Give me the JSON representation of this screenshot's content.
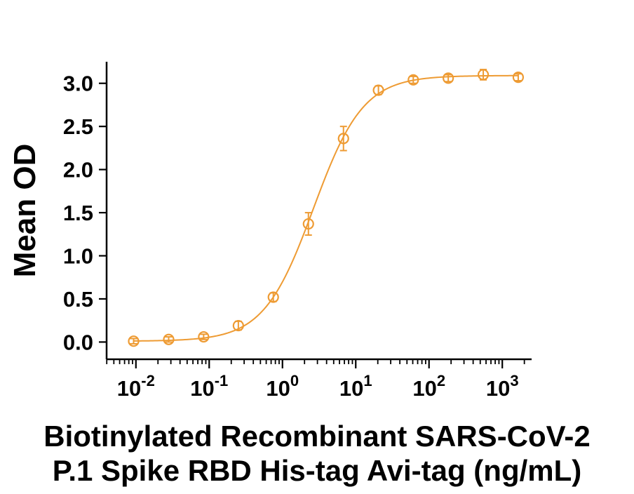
{
  "chart_data": {
    "type": "scatter",
    "title_line1": "Biotinylated Recombinant SARS-CoV-2",
    "title_line2": "P.1 Spike RBD His-tag Avi-tag (ng/mL)",
    "ylabel": "Mean OD",
    "x_scale": "log10",
    "xlim_log": [
      -2.4,
      3.4
    ],
    "ylim": [
      -0.2,
      3.25
    ],
    "x_tick_base": "10",
    "x_major_tick_exponents": [
      -2,
      -1,
      0,
      1,
      2,
      3
    ],
    "y_ticks": [
      0.0,
      0.5,
      1.0,
      1.5,
      2.0,
      2.5,
      3.0
    ],
    "grid": false,
    "legend": "none",
    "series": [
      {
        "color": "#EE9B33",
        "marker": "open-circle",
        "points": [
          {
            "x": 0.0093,
            "y": 0.01,
            "err": 0.03
          },
          {
            "x": 0.028,
            "y": 0.03,
            "err": 0.03
          },
          {
            "x": 0.084,
            "y": 0.06,
            "err": 0.03
          },
          {
            "x": 0.25,
            "y": 0.19,
            "err": 0.05
          },
          {
            "x": 0.75,
            "y": 0.52,
            "err": 0.05
          },
          {
            "x": 2.26,
            "y": 1.37,
            "err": 0.13
          },
          {
            "x": 6.8,
            "y": 2.36,
            "err": 0.14
          },
          {
            "x": 20.4,
            "y": 2.92,
            "err": 0.05
          },
          {
            "x": 61,
            "y": 3.04,
            "err": 0.04
          },
          {
            "x": 183,
            "y": 3.06,
            "err": 0.04
          },
          {
            "x": 550,
            "y": 3.1,
            "err": 0.06
          },
          {
            "x": 1650,
            "y": 3.07,
            "err": 0.04
          }
        ],
        "fit": {
          "model": "4PL",
          "bottom": 0.01,
          "top": 3.09,
          "ec50": 2.65,
          "hill": 1.28
        }
      }
    ]
  }
}
